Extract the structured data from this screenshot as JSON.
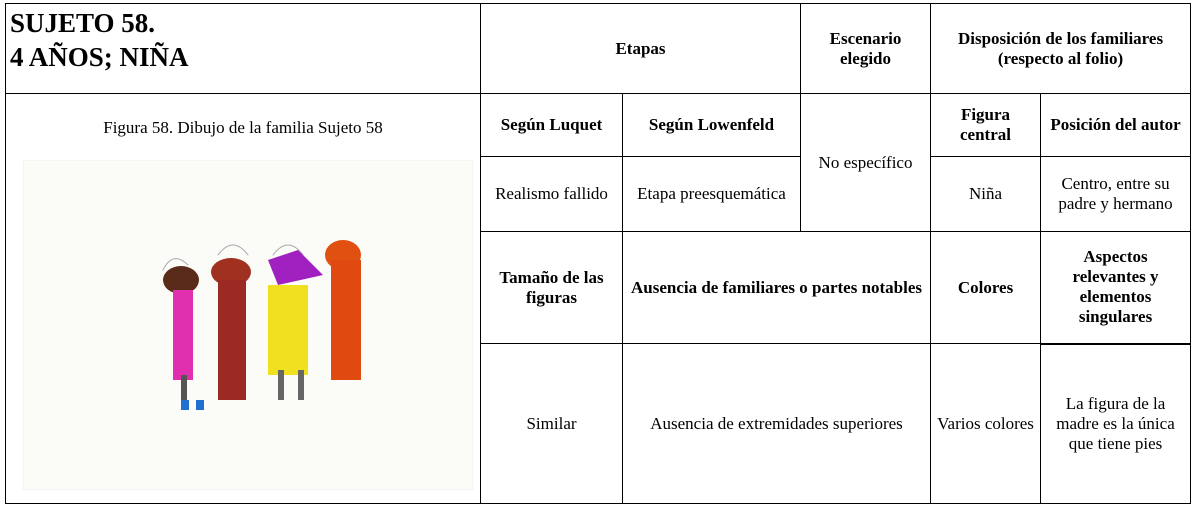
{
  "subject": {
    "lines": [
      "SUJETO 58.",
      "4 AÑOS; NIÑA"
    ]
  },
  "figure": {
    "caption": "Figura 58. Dibujo de la familia Sujeto 58"
  },
  "headers": {
    "etapas": "Etapas",
    "escenario": "Escenario elegido",
    "disposicion": "Disposición de los familiares (respecto al folio)"
  },
  "rows": [
    [
      "Según Luquet",
      "Según Lowenfeld",
      "No específico",
      "Figura central",
      "Posición del autor"
    ],
    [
      "Realismo fallido",
      "Etapa preesquemática",
      "Niña",
      "Centro, entre su padre y hermano"
    ],
    [
      "Tamaño de las figuras",
      "Ausencia de familiares o partes notables",
      "Colores",
      "Aspectos relevantes y elementos singulares"
    ],
    [
      "Similar",
      "Ausencia de extremidades superiores",
      "Varios colores",
      "La figura de la madre es la única que tiene pies"
    ]
  ]
}
